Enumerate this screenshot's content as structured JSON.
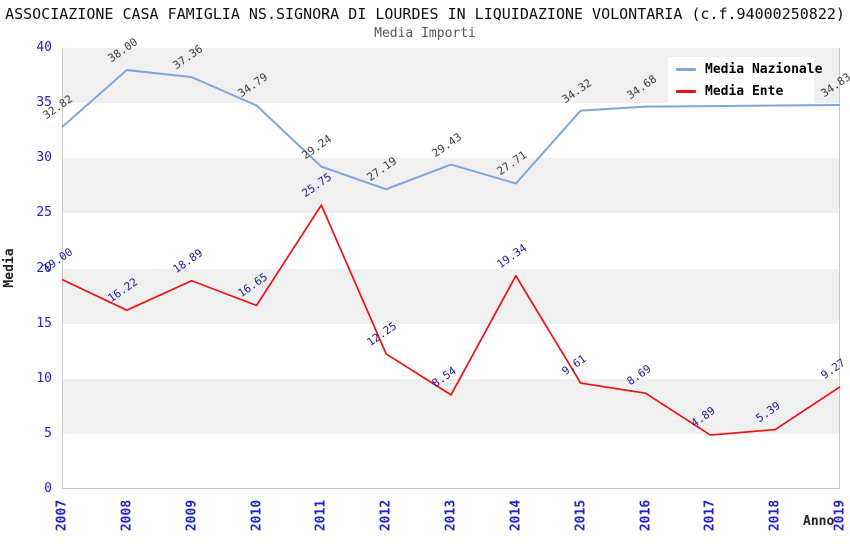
{
  "title": "ASSOCIAZIONE CASA FAMIGLIA NS.SIGNORA DI LOURDES IN LIQUIDAZIONE VOLONTARIA (c.f.94000250822)",
  "subtitle": "Media Importi",
  "legend": [
    {
      "label": "Media Nazionale",
      "color": "#7da7d9"
    },
    {
      "label": "Media Ente",
      "color": "#ee1111"
    }
  ],
  "colors": {
    "axis_tick": "#2222cc",
    "band": "#f0f0f0",
    "plot_border": "#c9c9c9"
  },
  "chart_data": {
    "type": "line",
    "title": "Media Importi",
    "xlabel": "Anno",
    "ylabel": "Media",
    "x": [
      2007,
      2008,
      2009,
      2010,
      2011,
      2012,
      2013,
      2014,
      2015,
      2016,
      2017,
      2018,
      2019
    ],
    "ylim": [
      0,
      40
    ],
    "ytick_step": 5,
    "legend_position": "top-right",
    "series": [
      {
        "name": "Media Nazionale",
        "color": "#7da7d9",
        "label_color": "#3c3c3c",
        "line_width": 2,
        "values": [
          32.82,
          38.0,
          37.36,
          34.79,
          29.24,
          27.19,
          29.43,
          27.71,
          34.32,
          34.68,
          34.73,
          34.79,
          34.83
        ],
        "labels": [
          "32.82",
          "38.00",
          "37.36",
          "34.79",
          "29.24",
          "27.19",
          "29.43",
          "27.71",
          "34.32",
          "34.68",
          null,
          null,
          "34.83"
        ]
      },
      {
        "name": "Media Ente",
        "color": "#ee1111",
        "label_color": "#20209a",
        "line_width": 1.7,
        "values": [
          19.0,
          16.22,
          18.89,
          16.65,
          25.75,
          12.25,
          8.54,
          19.34,
          9.61,
          8.69,
          4.89,
          5.39,
          9.27
        ],
        "labels": [
          "19.00",
          "16.22",
          "18.89",
          "16.65",
          "25.75",
          "12.25",
          "8.54",
          "19.34",
          "9.61",
          "8.69",
          "4.89",
          "5.39",
          "9.27"
        ]
      }
    ]
  }
}
